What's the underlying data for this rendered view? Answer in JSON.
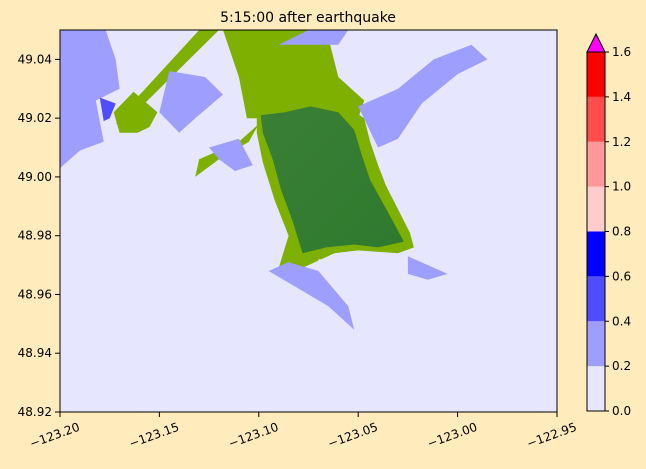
{
  "chart_data": {
    "type": "heatmap",
    "title": "5:15:00 after earthquake",
    "xlabel": "",
    "ylabel": "",
    "xlim": [
      -123.2,
      -122.95
    ],
    "ylim": [
      48.92,
      49.05
    ],
    "x_ticks": [
      -123.2,
      -123.15,
      -123.1,
      -123.05,
      -123.0,
      -122.95
    ],
    "x_tick_labels": [
      "−123.20",
      "−123.15",
      "−123.10",
      "−123.05",
      "−123.00",
      "−122.95"
    ],
    "y_ticks": [
      48.92,
      48.94,
      48.96,
      48.98,
      49.0,
      49.02,
      49.04
    ],
    "y_tick_labels": [
      "48.92",
      "48.94",
      "48.96",
      "48.98",
      "49.00",
      "49.02",
      "49.04"
    ],
    "background_color": "#E6E6FF",
    "land_colors": [
      "#7DB000",
      "#3A7F35"
    ],
    "colorbar": {
      "ticks": [
        0.0,
        0.2,
        0.4,
        0.6,
        0.8,
        1.0,
        1.2,
        1.4,
        1.6
      ],
      "tick_labels": [
        "0.0",
        "0.2",
        "0.4",
        "0.6",
        "0.8",
        "1.0",
        "1.2",
        "1.4",
        "1.6"
      ],
      "bins": [
        {
          "from": 0.0,
          "to": 0.2,
          "color": "#E6E6FF"
        },
        {
          "from": 0.2,
          "to": 0.4,
          "color": "#9E9EFF"
        },
        {
          "from": 0.4,
          "to": 0.6,
          "color": "#4E4EFF"
        },
        {
          "from": 0.6,
          "to": 0.8,
          "color": "#0000FF"
        },
        {
          "from": 0.8,
          "to": 1.0,
          "color": "#FFCCCC"
        },
        {
          "from": 1.0,
          "to": 1.2,
          "color": "#FF9999"
        },
        {
          "from": 1.2,
          "to": 1.4,
          "color": "#FF4C4C"
        },
        {
          "from": 1.4,
          "to": 1.6,
          "color": "#FF0000"
        }
      ],
      "extend_color": "#FF00FF"
    },
    "regions": [
      {
        "name": "land-north",
        "color": "#7DB000",
        "points": [
          [
            -123.118,
            49.05
          ],
          [
            -123.066,
            49.05
          ],
          [
            -123.06,
            49.034
          ],
          [
            -123.047,
            49.026
          ],
          [
            -123.05,
            49.02
          ],
          [
            -123.106,
            49.02
          ],
          [
            -123.11,
            49.034
          ]
        ]
      },
      {
        "name": "land-strip",
        "color": "#7DB000",
        "points": [
          [
            -123.13,
            49.05
          ],
          [
            -123.12,
            49.05
          ],
          [
            -123.165,
            49.02
          ],
          [
            -123.172,
            49.018
          ],
          [
            -123.168,
            49.022
          ]
        ]
      },
      {
        "name": "land-northwest-blob",
        "color": "#7DB000",
        "points": [
          [
            -123.173,
            49.022
          ],
          [
            -123.163,
            49.029
          ],
          [
            -123.151,
            49.022
          ],
          [
            -123.155,
            49.017
          ],
          [
            -123.161,
            49.015
          ],
          [
            -123.17,
            49.015
          ]
        ]
      },
      {
        "name": "land-peninsula",
        "color": "#7DB000",
        "points": [
          [
            -123.1,
            49.018
          ],
          [
            -123.11,
            49.012
          ],
          [
            -123.13,
            49.006
          ],
          [
            -123.132,
            49.0
          ],
          [
            -123.12,
            49.006
          ],
          [
            -123.105,
            49.012
          ]
        ]
      },
      {
        "name": "land-main",
        "color": "#7DB000",
        "points": [
          [
            -123.101,
            49.021
          ],
          [
            -123.09,
            49.024
          ],
          [
            -123.075,
            49.026
          ],
          [
            -123.056,
            49.024
          ],
          [
            -123.047,
            49.02
          ],
          [
            -123.044,
            49.012
          ],
          [
            -123.04,
            49.004
          ],
          [
            -123.036,
            48.997
          ],
          [
            -123.03,
            48.989
          ],
          [
            -123.024,
            48.981
          ],
          [
            -123.022,
            48.976
          ],
          [
            -123.03,
            48.974
          ],
          [
            -123.05,
            48.975
          ],
          [
            -123.062,
            48.974
          ],
          [
            -123.075,
            48.97
          ],
          [
            -123.085,
            48.967
          ],
          [
            -123.09,
            48.969
          ],
          [
            -123.085,
            48.98
          ],
          [
            -123.092,
            48.992
          ],
          [
            -123.098,
            49.005
          ],
          [
            -123.101,
            49.015
          ]
        ]
      },
      {
        "name": "land-main-interior",
        "color": "#3A7F35",
        "points": [
          [
            -123.099,
            49.021
          ],
          [
            -123.087,
            49.022
          ],
          [
            -123.074,
            49.024
          ],
          [
            -123.06,
            49.022
          ],
          [
            -123.052,
            49.016
          ],
          [
            -123.048,
            49.007
          ],
          [
            -123.044,
            48.999
          ],
          [
            -123.035,
            48.988
          ],
          [
            -123.027,
            48.978
          ],
          [
            -123.04,
            48.976
          ],
          [
            -123.052,
            48.977
          ],
          [
            -123.066,
            48.976
          ],
          [
            -123.078,
            48.974
          ],
          [
            -123.083,
            48.985
          ],
          [
            -123.089,
            48.996
          ],
          [
            -123.093,
            49.006
          ],
          [
            -123.098,
            49.015
          ]
        ]
      },
      {
        "name": "shallow-northwest-left",
        "color": "#9E9EFF",
        "points": [
          [
            -123.2,
            49.05
          ],
          [
            -123.177,
            49.05
          ],
          [
            -123.172,
            49.04
          ],
          [
            -123.17,
            49.03
          ],
          [
            -123.182,
            49.026
          ],
          [
            -123.178,
            49.012
          ],
          [
            -123.19,
            49.009
          ],
          [
            -123.2,
            49.003
          ]
        ]
      },
      {
        "name": "shallow-northwest-center",
        "color": "#9E9EFF",
        "points": [
          [
            -123.145,
            49.036
          ],
          [
            -123.127,
            49.034
          ],
          [
            -123.118,
            49.028
          ],
          [
            -123.132,
            49.02
          ],
          [
            -123.14,
            49.015
          ],
          [
            -123.15,
            49.022
          ]
        ]
      },
      {
        "name": "shallow-northwest-lower",
        "color": "#9E9EFF",
        "points": [
          [
            -123.125,
            49.01
          ],
          [
            -123.11,
            49.013
          ],
          [
            -123.103,
            49.004
          ],
          [
            -123.112,
            49.002
          ],
          [
            -123.12,
            49.006
          ]
        ]
      },
      {
        "name": "shallow-northeast",
        "color": "#9E9EFF",
        "points": [
          [
            -123.05,
            49.024
          ],
          [
            -123.03,
            49.03
          ],
          [
            -123.012,
            49.04
          ],
          [
            -122.993,
            49.045
          ],
          [
            -122.985,
            49.04
          ],
          [
            -123.0,
            49.035
          ],
          [
            -123.018,
            49.025
          ],
          [
            -123.03,
            49.013
          ],
          [
            -123.04,
            49.01
          ]
        ]
      },
      {
        "name": "shallow-northeast-top",
        "color": "#9E9EFF",
        "points": [
          [
            -123.09,
            49.045
          ],
          [
            -123.075,
            49.05
          ],
          [
            -123.055,
            49.05
          ],
          [
            -123.06,
            49.045
          ]
        ]
      },
      {
        "name": "shallow-south",
        "color": "#9E9EFF",
        "points": [
          [
            -123.095,
            48.968
          ],
          [
            -123.08,
            48.962
          ],
          [
            -123.065,
            48.956
          ],
          [
            -123.052,
            48.948
          ],
          [
            -123.055,
            48.956
          ],
          [
            -123.07,
            48.968
          ],
          [
            -123.085,
            48.971
          ]
        ]
      },
      {
        "name": "shallow-southeast",
        "color": "#9E9EFF",
        "points": [
          [
            -123.025,
            48.973
          ],
          [
            -123.015,
            48.97
          ],
          [
            -123.005,
            48.967
          ],
          [
            -123.015,
            48.965
          ],
          [
            -123.025,
            48.967
          ]
        ]
      },
      {
        "name": "medium-northwest",
        "color": "#4E4EFF",
        "points": [
          [
            -123.18,
            49.027
          ],
          [
            -123.172,
            49.025
          ],
          [
            -123.175,
            49.02
          ],
          [
            -123.178,
            49.019
          ]
        ]
      },
      {
        "name": "lagoon",
        "color": "#E6E6FF",
        "points": [
          [
            -123.07,
            48.972
          ],
          [
            -123.067,
            48.972
          ],
          [
            -123.066,
            48.971
          ],
          [
            -123.068,
            48.97
          ],
          [
            -123.07,
            48.971
          ]
        ]
      }
    ]
  }
}
